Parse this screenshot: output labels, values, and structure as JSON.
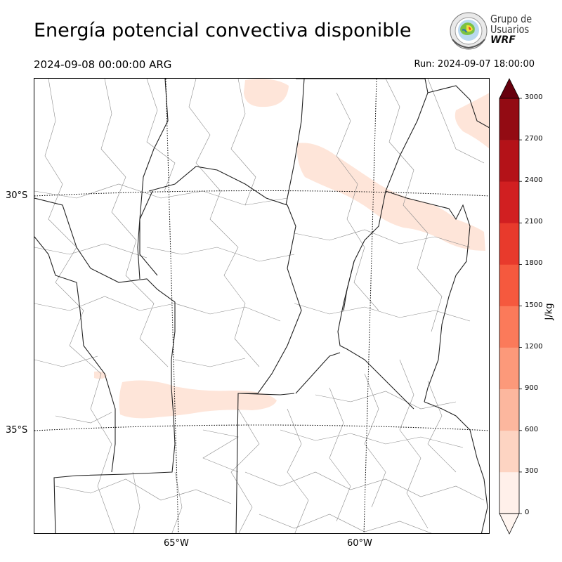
{
  "header": {
    "title": "Energía potencial convectiva disponible",
    "valid_time": "2024-09-08 00:00:00 ARG",
    "run_time": "Run: 2024-09-07 18:00:00"
  },
  "logo": {
    "line1": "Grupo de",
    "line2": "Usuarios",
    "line3": "WRF"
  },
  "map": {
    "lat_labels": [
      "30°S",
      "35°S"
    ],
    "lon_labels": [
      "65°W",
      "60°W"
    ],
    "field_color": "#fee5d9"
  },
  "colorbar": {
    "unit": "J/kg",
    "ticks": [
      "0",
      "300",
      "600",
      "900",
      "1200",
      "1500",
      "1800",
      "2100",
      "2400",
      "2700",
      "3000"
    ],
    "colors": [
      "#fff0ea",
      "#fdd4c2",
      "#fcb79e",
      "#fc997a",
      "#fb7a5a",
      "#f5593e",
      "#e83a2c",
      "#d11f21",
      "#b41218",
      "#930b13",
      "#730611"
    ],
    "extend_color": "#67000d"
  }
}
